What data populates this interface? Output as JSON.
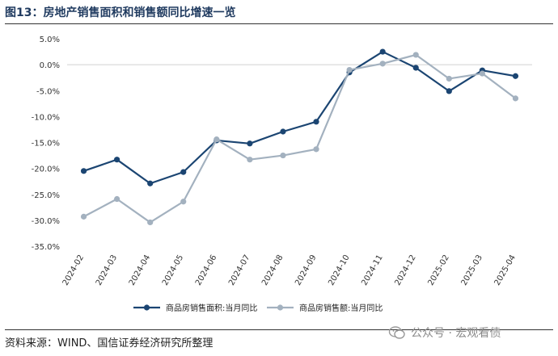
{
  "title": "图13：房地产销售面积和销售额同比增速一览",
  "source": "资料来源：WIND、国信证券经济研究所整理",
  "watermark": "公众号 · 宏观看债",
  "chart_data": {
    "type": "line",
    "categories": [
      "2024-02",
      "2024-03",
      "2024-04",
      "2024-05",
      "2024-06",
      "2024-07",
      "2024-08",
      "2024-09",
      "2024-10",
      "2024-11",
      "2024-12",
      "2025-02",
      "2025-03",
      "2025-04"
    ],
    "ylim": [
      -35,
      5
    ],
    "yticks": [
      5,
      0,
      -5,
      -10,
      -15,
      -20,
      -25,
      -30,
      -35
    ],
    "ytick_labels": [
      "5.0%",
      "0.0%",
      "-5.0%",
      "-10.0%",
      "-15.0%",
      "-20.0%",
      "-25.0%",
      "-30.0%",
      "-35.0%"
    ],
    "legend_position": "bottom",
    "series": [
      {
        "name": "商品房销售面积:当月同比",
        "color": "#1b4572",
        "values": [
          -20.5,
          -18.3,
          -22.9,
          -20.7,
          -14.6,
          -15.2,
          -12.9,
          -11.0,
          -1.5,
          2.5,
          -0.6,
          -5.1,
          -1.1,
          -2.2
        ]
      },
      {
        "name": "商品房销售额:当月同比",
        "color": "#a3b1bf",
        "values": [
          -29.3,
          -25.9,
          -30.4,
          -26.4,
          -14.4,
          -18.3,
          -17.5,
          -16.3,
          -1.0,
          0.2,
          1.9,
          -2.7,
          -1.7,
          -6.5
        ]
      }
    ]
  }
}
